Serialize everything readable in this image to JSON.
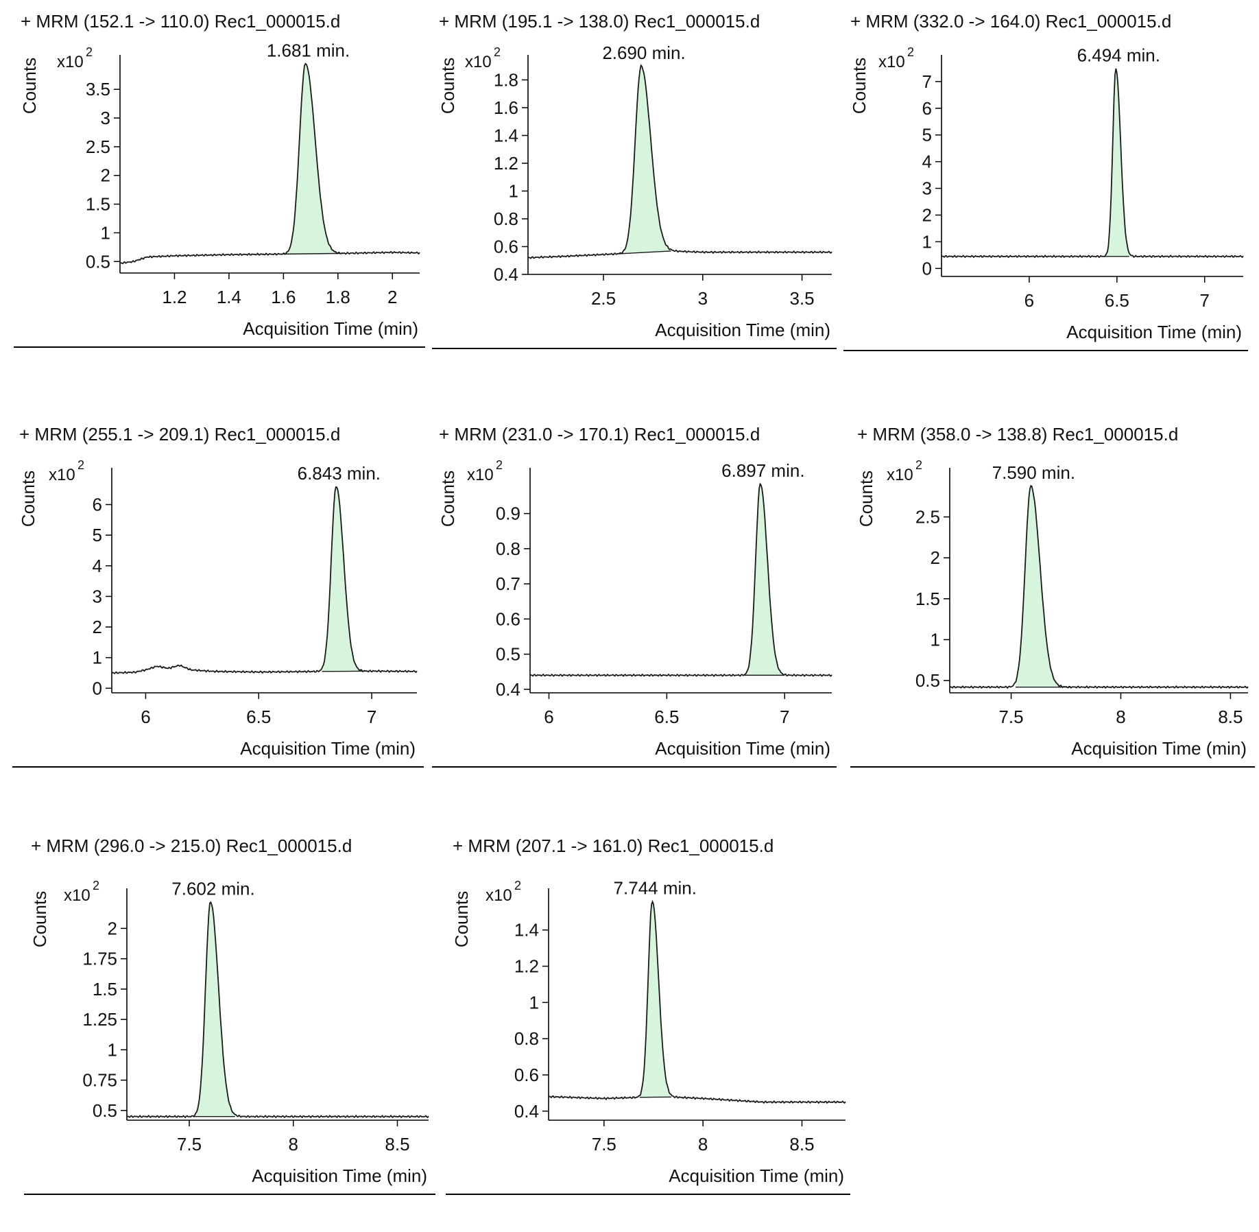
{
  "chart_data": [
    {
      "type": "line",
      "title": "+ MRM (152.1 -> 110.0) Rec1_000015.d",
      "ylabel": "Counts",
      "multiplier": "x10",
      "multiplier_exp": "2",
      "xlabel": "Acquisition Time (min)",
      "xlim": [
        1.0,
        2.1
      ],
      "ylim": [
        0.3,
        4.1
      ],
      "xticks": [
        1.2,
        1.4,
        1.6,
        1.8,
        2
      ],
      "yticks": [
        0.5,
        1,
        1.5,
        2,
        2.5,
        3,
        3.5
      ],
      "xtick_labels": [
        "1.2",
        "1.4",
        "1.6",
        "1.8",
        "2"
      ],
      "ytick_labels": [
        "0.5",
        "1",
        "1.5",
        "2",
        "2.5",
        "3",
        "3.5"
      ],
      "baseline": [
        [
          1.0,
          0.47
        ],
        [
          1.05,
          0.5
        ],
        [
          1.1,
          0.58
        ],
        [
          1.2,
          0.6
        ],
        [
          1.4,
          0.62
        ],
        [
          1.6,
          0.63
        ],
        [
          1.8,
          0.64
        ],
        [
          2.0,
          0.66
        ],
        [
          2.1,
          0.65
        ]
      ],
      "peak": {
        "rt": 1.681,
        "label": "1.681 min.",
        "apex": 3.95,
        "start": 1.6,
        "end": 1.82,
        "width": 0.022,
        "tail": 1.6
      }
    },
    {
      "type": "line",
      "title": "+ MRM (195.1 -> 138.0) Rec1_000015.d",
      "ylabel": "Counts",
      "multiplier": "x10",
      "multiplier_exp": "2",
      "xlabel": "Acquisition Time (min)",
      "xlim": [
        2.12,
        3.65
      ],
      "ylim": [
        0.4,
        1.98
      ],
      "xticks": [
        2.5,
        3,
        3.5
      ],
      "yticks": [
        0.4,
        0.6,
        0.8,
        1,
        1.2,
        1.4,
        1.6,
        1.8
      ],
      "xtick_labels": [
        "2.5",
        "3",
        "3.5"
      ],
      "ytick_labels": [
        "0.4",
        "0.6",
        "0.8",
        "1",
        "1.2",
        "1.4",
        "1.6",
        "1.8"
      ],
      "baseline": [
        [
          2.12,
          0.52
        ],
        [
          2.3,
          0.53
        ],
        [
          2.6,
          0.55
        ],
        [
          2.8,
          0.57
        ],
        [
          3.0,
          0.56
        ],
        [
          3.3,
          0.56
        ],
        [
          3.65,
          0.56
        ]
      ],
      "peak": {
        "rt": 2.69,
        "label": "2.690 min.",
        "apex": 1.9,
        "start": 2.58,
        "end": 2.84,
        "width": 0.03,
        "tail": 1.6
      }
    },
    {
      "type": "line",
      "title": "+ MRM (332.0 -> 164.0) Rec1_000015.d",
      "ylabel": "Counts",
      "multiplier": "x10",
      "multiplier_exp": "2",
      "xlabel": "Acquisition Time (min)",
      "xlim": [
        5.5,
        7.22
      ],
      "ylim": [
        -0.3,
        8.0
      ],
      "xticks": [
        6,
        6.5,
        7
      ],
      "yticks": [
        0,
        1,
        2,
        3,
        4,
        5,
        6,
        7
      ],
      "xtick_labels": [
        "6",
        "6.5",
        "7"
      ],
      "ytick_labels": [
        "0",
        "1",
        "2",
        "3",
        "4",
        "5",
        "6",
        "7"
      ],
      "baseline": [
        [
          5.5,
          0.45
        ],
        [
          6.0,
          0.45
        ],
        [
          6.5,
          0.45
        ],
        [
          7.22,
          0.45
        ]
      ],
      "peak": {
        "rt": 6.494,
        "label": "6.494 min.",
        "apex": 7.5,
        "start": 6.42,
        "end": 6.57,
        "width": 0.018,
        "tail": 1.5
      }
    },
    {
      "type": "line",
      "title": "+ MRM (255.1 -> 209.1) Rec1_000015.d",
      "ylabel": "Counts",
      "multiplier": "x10",
      "multiplier_exp": "2",
      "xlabel": "Acquisition Time (min)",
      "xlim": [
        5.85,
        7.2
      ],
      "ylim": [
        -0.15,
        7.2
      ],
      "xticks": [
        6,
        6.5,
        7
      ],
      "yticks": [
        0,
        1,
        2,
        3,
        4,
        5,
        6
      ],
      "xtick_labels": [
        "6",
        "6.5",
        "7"
      ],
      "ytick_labels": [
        "0",
        "1",
        "2",
        "3",
        "4",
        "5",
        "6"
      ],
      "baseline": [
        [
          5.85,
          0.5
        ],
        [
          5.95,
          0.52
        ],
        [
          6.0,
          0.6
        ],
        [
          6.05,
          0.72
        ],
        [
          6.1,
          0.65
        ],
        [
          6.15,
          0.75
        ],
        [
          6.2,
          0.6
        ],
        [
          6.3,
          0.55
        ],
        [
          6.5,
          0.53
        ],
        [
          6.8,
          0.55
        ],
        [
          7.0,
          0.56
        ],
        [
          7.2,
          0.55
        ]
      ],
      "peak": {
        "rt": 6.843,
        "label": "6.843 min.",
        "apex": 6.6,
        "start": 6.78,
        "end": 6.98,
        "width": 0.022,
        "tail": 1.5
      }
    },
    {
      "type": "line",
      "title": "+ MRM (231.0 -> 170.1) Rec1_000015.d",
      "ylabel": "Counts",
      "multiplier": "x10",
      "multiplier_exp": "2",
      "xlabel": "Acquisition Time (min)",
      "xlim": [
        5.92,
        7.2
      ],
      "ylim": [
        0.39,
        1.03
      ],
      "xticks": [
        6,
        6.5,
        7
      ],
      "yticks": [
        0.4,
        0.5,
        0.6,
        0.7,
        0.8,
        0.9
      ],
      "xtick_labels": [
        "6",
        "6.5",
        "7"
      ],
      "ytick_labels": [
        "0.4",
        "0.5",
        "0.6",
        "0.7",
        "0.8",
        "0.9"
      ],
      "baseline": [
        [
          5.92,
          0.44
        ],
        [
          6.2,
          0.44
        ],
        [
          6.5,
          0.44
        ],
        [
          6.8,
          0.44
        ],
        [
          7.2,
          0.44
        ]
      ],
      "peak": {
        "rt": 6.897,
        "label": "6.897 min.",
        "apex": 0.985,
        "start": 6.83,
        "end": 7.0,
        "width": 0.02,
        "tail": 1.5
      }
    },
    {
      "type": "line",
      "title": "+ MRM (358.0 -> 138.8) Rec1_000015.d",
      "ylabel": "Counts",
      "multiplier": "x10",
      "multiplier_exp": "2",
      "xlabel": "Acquisition Time (min)",
      "xlim": [
        7.22,
        8.58
      ],
      "ylim": [
        0.35,
        3.1
      ],
      "xticks": [
        7.5,
        8,
        8.5
      ],
      "yticks": [
        0.5,
        1,
        1.5,
        2,
        2.5
      ],
      "xtick_labels": [
        "7.5",
        "8",
        "8.5"
      ],
      "ytick_labels": [
        "0.5",
        "1",
        "1.5",
        "2",
        "2.5"
      ],
      "baseline": [
        [
          7.22,
          0.42
        ],
        [
          7.6,
          0.42
        ],
        [
          8.0,
          0.42
        ],
        [
          8.58,
          0.42
        ]
      ],
      "peak": {
        "rt": 7.59,
        "label": "7.590 min.",
        "apex": 2.88,
        "start": 7.52,
        "end": 7.77,
        "width": 0.026,
        "tail": 1.6
      }
    },
    {
      "type": "line",
      "title": "+ MRM (296.0 -> 215.0) Rec1_000015.d",
      "ylabel": "Counts",
      "multiplier": "x10",
      "multiplier_exp": "2",
      "xlabel": "Acquisition Time (min)",
      "xlim": [
        7.2,
        8.65
      ],
      "ylim": [
        0.42,
        2.33
      ],
      "xticks": [
        7.5,
        8,
        8.5
      ],
      "yticks": [
        0.5,
        0.75,
        1,
        1.25,
        1.5,
        1.75,
        2
      ],
      "xtick_labels": [
        "7.5",
        "8",
        "8.5"
      ],
      "ytick_labels": [
        "0.5",
        "0.75",
        "1",
        "1.25",
        "1.5",
        "1.75",
        "2"
      ],
      "baseline": [
        [
          7.2,
          0.45
        ],
        [
          7.6,
          0.45
        ],
        [
          8.0,
          0.45
        ],
        [
          8.65,
          0.45
        ]
      ],
      "peak": {
        "rt": 7.602,
        "label": "7.602 min.",
        "apex": 2.22,
        "start": 7.52,
        "end": 7.72,
        "width": 0.024,
        "tail": 1.6
      }
    },
    {
      "type": "line",
      "title": "+ MRM (207.1 -> 161.0) Rec1_000015.d",
      "ylabel": "Counts",
      "multiplier": "x10",
      "multiplier_exp": "2",
      "xlabel": "Acquisition Time (min)",
      "xlim": [
        7.22,
        8.72
      ],
      "ylim": [
        0.35,
        1.63
      ],
      "xticks": [
        7.5,
        8,
        8.5
      ],
      "yticks": [
        0.4,
        0.6,
        0.8,
        1,
        1.2,
        1.4
      ],
      "xtick_labels": [
        "7.5",
        "8",
        "8.5"
      ],
      "ytick_labels": [
        "0.4",
        "0.6",
        "0.8",
        "1",
        "1.2",
        "1.4"
      ],
      "baseline": [
        [
          7.22,
          0.48
        ],
        [
          7.5,
          0.47
        ],
        [
          7.8,
          0.48
        ],
        [
          8.0,
          0.47
        ],
        [
          8.3,
          0.45
        ],
        [
          8.72,
          0.45
        ]
      ],
      "peak": {
        "rt": 7.744,
        "label": "7.744 min.",
        "apex": 1.56,
        "start": 7.68,
        "end": 7.84,
        "width": 0.021,
        "tail": 1.5
      }
    }
  ],
  "colors": {
    "trace": "#1a1a1a",
    "peak_fill": "#d7f5dc",
    "axis": "#000000"
  }
}
